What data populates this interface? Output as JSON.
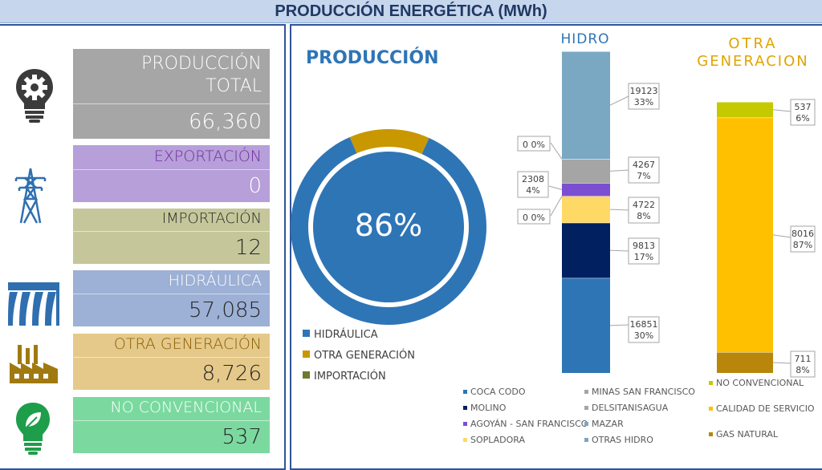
{
  "header": {
    "title": "PRODUCCIÓN ENERGÉTICA (MWh)"
  },
  "kpis": [
    {
      "label_line1": "PRODUCCIÓN",
      "label_line2": "TOTAL",
      "value": "66,360",
      "icon": "lightbulb-gear-icon",
      "color": "#a6a6a6",
      "label_color": "#ffffff",
      "value_color": "#ffffff"
    },
    {
      "label_line1": "EXPORTACIÓN",
      "value": "0",
      "icon": "transmission-tower-icon",
      "color": "#b79fd9",
      "label_color": "#7030a0",
      "value_color": "#ffffff"
    },
    {
      "label_line1": "IMPORTACIÓN",
      "value": "12",
      "icon": "transmission-tower-icon",
      "color": "#c5c79b",
      "label_color": "#262626",
      "value_color": "#262626"
    },
    {
      "label_line1": "HIDRÁULICA",
      "value": "57,085",
      "icon": "dam-icon",
      "color": "#9db0d5",
      "label_color": "#ffffff",
      "value_color": "#262626"
    },
    {
      "label_line1": "OTRA GENERACIÓN",
      "value": "8,726",
      "icon": "factory-icon",
      "color": "#e5c98a",
      "label_color": "#8a5d00",
      "value_color": "#262626"
    },
    {
      "label_line1": "NO CONVENCIONAL",
      "value": "537",
      "icon": "eco-bulb-icon",
      "color": "#7bd9a0",
      "label_color": "#ffffff",
      "value_color": "#262626"
    }
  ],
  "produccion": {
    "title": "PRODUCCIÓN",
    "center_label": "86%",
    "legend": [
      {
        "name": "HIDRÁULICA",
        "color": "#2e75b6"
      },
      {
        "name": "OTRA GENERACIÓN",
        "color": "#c99700"
      },
      {
        "name": "IMPORTACIÓN",
        "color": "#6e7a2f"
      }
    ]
  },
  "hidro": {
    "title": "HIDRO",
    "legend": [
      {
        "name": "COCA CODO",
        "color": "#2e75b6"
      },
      {
        "name": "MINAS SAN FRANCISCO",
        "color": "#a5a5a5"
      },
      {
        "name": "MOLINO",
        "color": "#002060"
      },
      {
        "name": "DELSITANISAGUA",
        "color": "#a5a5a5"
      },
      {
        "name": "AGOYÁN - SAN FRANCISCO",
        "color": "#7b4fd1"
      },
      {
        "name": "MAZAR",
        "color": "#7aa7c2"
      },
      {
        "name": "SOPLADORA",
        "color": "#ffd966"
      },
      {
        "name": "OTRAS HIDRO",
        "color": "#7aa7c2"
      }
    ]
  },
  "otra": {
    "title_line1": "OTRA",
    "title_line2": "GENERACION",
    "legend": [
      {
        "name": "NO CONVENCIONAL",
        "color": "#c5c900"
      },
      {
        "name": "CALIDAD DE SERVICIO",
        "color": "#ffc000"
      },
      {
        "name": "GAS NATURAL",
        "color": "#b8860b"
      }
    ]
  },
  "chart_data": [
    {
      "type": "pie",
      "title": "PRODUCCIÓN",
      "categories": [
        "HIDRÁULICA",
        "OTRA GENERACIÓN",
        "IMPORTACIÓN"
      ],
      "values": [
        57085,
        8726,
        12
      ],
      "colors": [
        "#2e75b6",
        "#c99700",
        "#6e7a2f"
      ],
      "center_label": "86%",
      "legend": "bottom-left"
    },
    {
      "type": "bar",
      "title": "HIDRO",
      "stacked": true,
      "segments": [
        {
          "name": "COCA CODO",
          "value": 16851,
          "label_value": "16851",
          "label_pct": "30%",
          "color": "#2e75b6"
        },
        {
          "name": "MOLINO",
          "value": 9813,
          "label_value": "9813",
          "label_pct": "17%",
          "color": "#002060"
        },
        {
          "name": "SOPLADORA",
          "value": 4722,
          "label_value": "4722",
          "label_pct": "8%",
          "color": "#ffd966"
        },
        {
          "name": "MINAS SAN FRANCISCO",
          "value": 0,
          "label_value": "0",
          "label_pct": "0%",
          "color": "#a5a5a5"
        },
        {
          "name": "AGOYÁN - SAN FRANCISCO",
          "value": 2308,
          "label_value": "2308",
          "label_pct": "4%",
          "color": "#7b4fd1"
        },
        {
          "name": "DELSITANISAGUA",
          "value": 4267,
          "label_value": "4267",
          "label_pct": "7%",
          "color": "#a5a5a5"
        },
        {
          "name": "MAZAR",
          "value": 0,
          "label_value": "0",
          "label_pct": "0%",
          "color": "#8fa9c9"
        },
        {
          "name": "OTRAS HIDRO",
          "value": 19123,
          "label_value": "19123",
          "label_pct": "33%",
          "color": "#7aa7c2"
        }
      ]
    },
    {
      "type": "bar",
      "title": "OTRA GENERACION",
      "stacked": true,
      "segments": [
        {
          "name": "GAS NATURAL",
          "value": 711,
          "label_value": "711",
          "label_pct": "8%",
          "color": "#b8860b"
        },
        {
          "name": "CALIDAD DE SERVICIO",
          "value": 8016,
          "label_value": "8016",
          "label_pct": "87%",
          "color": "#ffc000"
        },
        {
          "name": "NO CONVENCIONAL",
          "value": 537,
          "label_value": "537",
          "label_pct": "6%",
          "color": "#c5c900"
        }
      ]
    }
  ]
}
